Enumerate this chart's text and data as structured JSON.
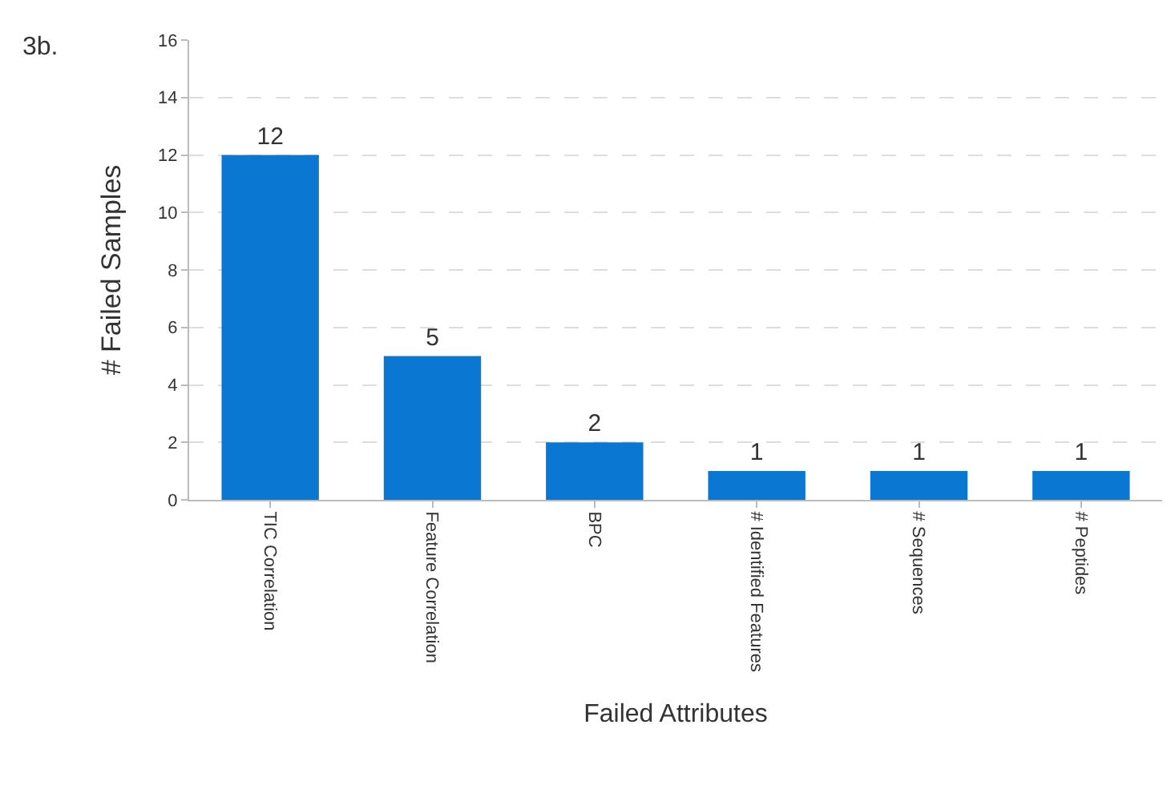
{
  "chart_data": {
    "type": "bar",
    "xlabel": "Failed Attributes",
    "ylabel": "# Failed Samples",
    "categories": [
      "TIC Correlation",
      "Feature Correlation",
      "BPC",
      "# Identified Features",
      "# Sequences",
      "# Peptides"
    ],
    "values": [
      12,
      5,
      2,
      1,
      1,
      1
    ],
    "color": "#0a78d2",
    "ylim": [
      0,
      16
    ],
    "yticks": [
      0,
      2,
      4,
      6,
      8,
      10,
      12,
      14,
      16
    ],
    "grid": "y",
    "data_labels": true,
    "annotations": [
      "3b."
    ]
  }
}
